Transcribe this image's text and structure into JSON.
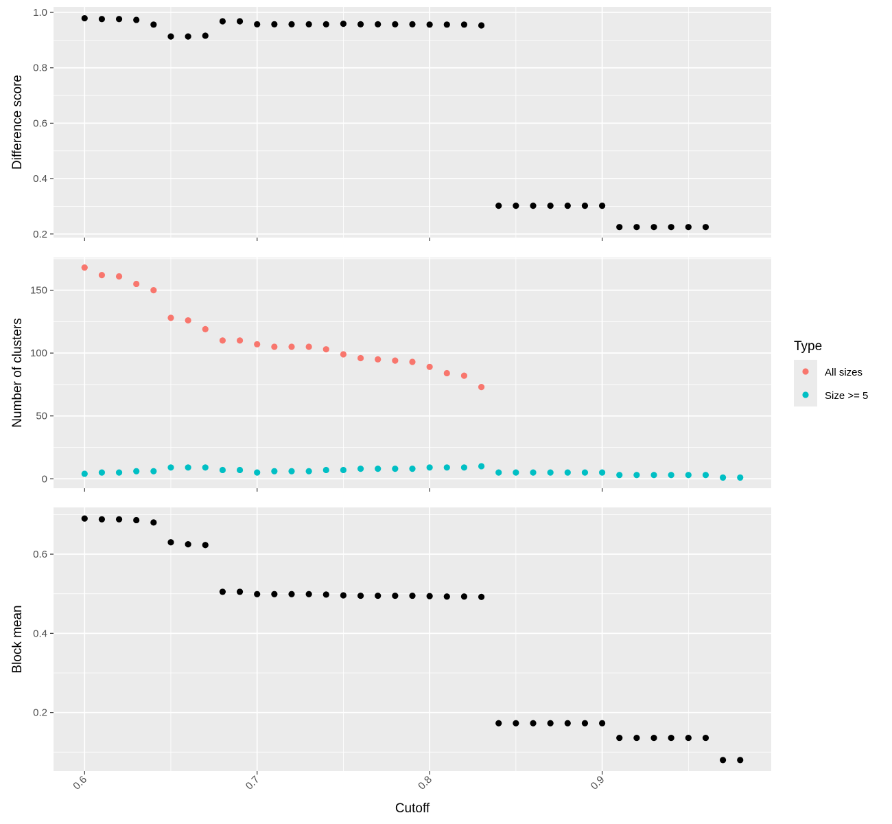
{
  "chart_data": [
    {
      "type": "scatter",
      "panel": "top",
      "ylabel": "Difference score",
      "xlim": [
        0.582,
        0.998
      ],
      "ylim": [
        0.187,
        1.02
      ],
      "yticks": [
        0.2,
        0.4,
        0.6,
        0.8,
        1.0
      ],
      "ytick_labels": [
        "0.2",
        "0.4",
        "0.6",
        "0.8",
        "1.0"
      ],
      "grid": true,
      "series": [
        {
          "color": "#000000",
          "x": [
            0.6,
            0.61,
            0.62,
            0.63,
            0.64,
            0.65,
            0.66,
            0.67,
            0.68,
            0.69,
            0.7,
            0.71,
            0.72,
            0.73,
            0.74,
            0.75,
            0.76,
            0.77,
            0.78,
            0.79,
            0.8,
            0.81,
            0.82,
            0.83,
            0.84,
            0.85,
            0.86,
            0.87,
            0.88,
            0.89,
            0.9,
            0.91,
            0.92,
            0.93,
            0.94,
            0.95,
            0.96
          ],
          "y": [
            0.979,
            0.976,
            0.976,
            0.973,
            0.956,
            0.913,
            0.913,
            0.916,
            0.968,
            0.968,
            0.957,
            0.957,
            0.957,
            0.957,
            0.957,
            0.959,
            0.957,
            0.957,
            0.957,
            0.957,
            0.956,
            0.956,
            0.956,
            0.953,
            0.302,
            0.302,
            0.302,
            0.302,
            0.302,
            0.302,
            0.302,
            0.225,
            0.225,
            0.225,
            0.225,
            0.225,
            0.225
          ]
        }
      ]
    },
    {
      "type": "scatter",
      "panel": "middle",
      "ylabel": "Number of clusters",
      "xlim": [
        0.582,
        0.998
      ],
      "ylim": [
        -7.5,
        176
      ],
      "yticks": [
        0,
        50,
        100,
        150
      ],
      "ytick_labels": [
        "0",
        "50",
        "100",
        "150"
      ],
      "grid": true,
      "legend": {
        "title": "Type",
        "position": "right",
        "entries": [
          "All sizes",
          "Size >= 5"
        ]
      },
      "series": [
        {
          "name": "All sizes",
          "color": "#F8766D",
          "x": [
            0.6,
            0.61,
            0.62,
            0.63,
            0.64,
            0.65,
            0.66,
            0.67,
            0.68,
            0.69,
            0.7,
            0.71,
            0.72,
            0.73,
            0.74,
            0.75,
            0.76,
            0.77,
            0.78,
            0.79,
            0.8,
            0.81,
            0.82,
            0.83
          ],
          "y": [
            168,
            162,
            161,
            155,
            150,
            128,
            126,
            119,
            110,
            110,
            107,
            105,
            105,
            105,
            103,
            99,
            96,
            95,
            94,
            93,
            89,
            84,
            82,
            73
          ]
        },
        {
          "name": "Size >= 5",
          "color": "#00BFC4",
          "x": [
            0.6,
            0.61,
            0.62,
            0.63,
            0.64,
            0.65,
            0.66,
            0.67,
            0.68,
            0.69,
            0.7,
            0.71,
            0.72,
            0.73,
            0.74,
            0.75,
            0.76,
            0.77,
            0.78,
            0.79,
            0.8,
            0.81,
            0.82,
            0.83,
            0.84,
            0.85,
            0.86,
            0.87,
            0.88,
            0.89,
            0.9,
            0.91,
            0.92,
            0.93,
            0.94,
            0.95,
            0.96,
            0.97,
            0.98
          ],
          "y": [
            4,
            5,
            5,
            6,
            6,
            9,
            9,
            9,
            7,
            7,
            5,
            6,
            6,
            6,
            7,
            7,
            8,
            8,
            8,
            8,
            9,
            9,
            9,
            10,
            5,
            5,
            5,
            5,
            5,
            5,
            5,
            3,
            3,
            3,
            3,
            3,
            3,
            1,
            1
          ]
        }
      ]
    },
    {
      "type": "scatter",
      "panel": "bottom",
      "ylabel": "Block mean",
      "xlabel": "Cutoff",
      "xlim": [
        0.582,
        0.998
      ],
      "ylim": [
        0.052,
        0.718
      ],
      "xticks": [
        0.6,
        0.7,
        0.8,
        0.9
      ],
      "xtick_labels": [
        "0.6",
        "0.7",
        "0.8",
        "0.9"
      ],
      "yticks": [
        0.2,
        0.4,
        0.6
      ],
      "ytick_labels": [
        "0.2",
        "0.4",
        "0.6"
      ],
      "grid": true,
      "series": [
        {
          "color": "#000000",
          "x": [
            0.6,
            0.61,
            0.62,
            0.63,
            0.64,
            0.65,
            0.66,
            0.67,
            0.68,
            0.69,
            0.7,
            0.71,
            0.72,
            0.73,
            0.74,
            0.75,
            0.76,
            0.77,
            0.78,
            0.79,
            0.8,
            0.81,
            0.82,
            0.83,
            0.84,
            0.85,
            0.86,
            0.87,
            0.88,
            0.89,
            0.9,
            0.91,
            0.92,
            0.93,
            0.94,
            0.95,
            0.96,
            0.97,
            0.98
          ],
          "y": [
            0.69,
            0.688,
            0.688,
            0.686,
            0.68,
            0.63,
            0.625,
            0.623,
            0.505,
            0.505,
            0.499,
            0.499,
            0.499,
            0.499,
            0.498,
            0.496,
            0.495,
            0.495,
            0.495,
            0.495,
            0.494,
            0.493,
            0.493,
            0.492,
            0.173,
            0.173,
            0.173,
            0.173,
            0.173,
            0.173,
            0.173,
            0.136,
            0.136,
            0.136,
            0.136,
            0.136,
            0.136,
            0.08,
            0.08
          ]
        }
      ]
    }
  ]
}
